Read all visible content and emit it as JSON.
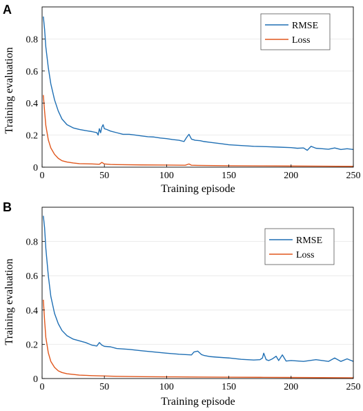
{
  "chart_data": [
    {
      "panel_label": "A",
      "type": "line",
      "xlabel": "Training episode",
      "ylabel": "Training evaluation",
      "xlim": [
        0,
        250
      ],
      "ylim": [
        0,
        1
      ],
      "xticks": [
        0,
        50,
        100,
        150,
        200,
        250
      ],
      "yticks": [
        0,
        0.2,
        0.4,
        0.6,
        0.8
      ],
      "grid": "horizontal",
      "legend_position": "top-right",
      "colors": {
        "RMSE": "#1f6fb4",
        "Loss": "#e0561c"
      },
      "series": [
        {
          "name": "RMSE",
          "x": [
            1,
            2,
            3,
            5,
            7,
            10,
            13,
            16,
            20,
            25,
            30,
            35,
            40,
            44,
            45,
            46,
            47,
            48,
            49,
            50,
            52,
            55,
            60,
            65,
            70,
            75,
            80,
            85,
            90,
            95,
            100,
            105,
            110,
            114,
            116,
            118,
            120,
            123,
            127,
            130,
            135,
            140,
            145,
            150,
            160,
            170,
            180,
            190,
            200,
            205,
            210,
            213,
            216,
            220,
            225,
            230,
            235,
            240,
            245,
            250
          ],
          "y": [
            0.94,
            0.86,
            0.75,
            0.62,
            0.52,
            0.42,
            0.35,
            0.3,
            0.265,
            0.245,
            0.235,
            0.228,
            0.222,
            0.215,
            0.2,
            0.24,
            0.215,
            0.25,
            0.265,
            0.24,
            0.235,
            0.225,
            0.215,
            0.205,
            0.205,
            0.2,
            0.195,
            0.19,
            0.188,
            0.182,
            0.178,
            0.172,
            0.168,
            0.16,
            0.185,
            0.205,
            0.175,
            0.168,
            0.165,
            0.16,
            0.155,
            0.15,
            0.145,
            0.14,
            0.135,
            0.13,
            0.128,
            0.125,
            0.122,
            0.118,
            0.12,
            0.105,
            0.13,
            0.118,
            0.115,
            0.112,
            0.12,
            0.11,
            0.115,
            0.11
          ]
        },
        {
          "name": "Loss",
          "x": [
            1,
            2,
            3,
            5,
            7,
            10,
            13,
            16,
            20,
            25,
            30,
            40,
            46,
            48,
            50,
            55,
            60,
            80,
            100,
            115,
            118,
            120,
            125,
            150,
            175,
            200,
            225,
            250
          ],
          "y": [
            0.45,
            0.35,
            0.26,
            0.17,
            0.12,
            0.08,
            0.055,
            0.04,
            0.032,
            0.026,
            0.022,
            0.02,
            0.018,
            0.03,
            0.02,
            0.017,
            0.016,
            0.014,
            0.013,
            0.012,
            0.02,
            0.012,
            0.011,
            0.009,
            0.008,
            0.007,
            0.006,
            0.005
          ]
        }
      ]
    },
    {
      "panel_label": "B",
      "type": "line",
      "xlabel": "Training episode",
      "ylabel": "Training evaluation",
      "xlim": [
        0,
        250
      ],
      "ylim": [
        0,
        1
      ],
      "xticks": [
        0,
        50,
        100,
        150,
        200,
        250
      ],
      "yticks": [
        0,
        0.2,
        0.4,
        0.6,
        0.8
      ],
      "grid": "horizontal",
      "legend_position": "top-right",
      "colors": {
        "RMSE": "#1f6fb4",
        "Loss": "#e0561c"
      },
      "series": [
        {
          "name": "RMSE",
          "x": [
            1,
            2,
            3,
            5,
            7,
            10,
            13,
            16,
            20,
            25,
            30,
            35,
            40,
            44,
            46,
            48,
            50,
            55,
            60,
            70,
            80,
            90,
            100,
            110,
            120,
            122,
            125,
            128,
            130,
            135,
            140,
            150,
            160,
            170,
            175,
            177,
            178,
            180,
            182,
            185,
            188,
            190,
            193,
            196,
            200,
            210,
            220,
            230,
            235,
            240,
            245,
            250
          ],
          "y": [
            0.95,
            0.88,
            0.76,
            0.6,
            0.48,
            0.38,
            0.32,
            0.28,
            0.25,
            0.23,
            0.22,
            0.21,
            0.195,
            0.19,
            0.21,
            0.195,
            0.188,
            0.185,
            0.175,
            0.17,
            0.162,
            0.155,
            0.148,
            0.142,
            0.138,
            0.155,
            0.16,
            0.14,
            0.135,
            0.128,
            0.125,
            0.12,
            0.112,
            0.108,
            0.11,
            0.12,
            0.148,
            0.11,
            0.105,
            0.115,
            0.13,
            0.105,
            0.138,
            0.102,
            0.105,
            0.1,
            0.11,
            0.1,
            0.12,
            0.1,
            0.115,
            0.1
          ]
        },
        {
          "name": "Loss",
          "x": [
            1,
            2,
            3,
            5,
            7,
            10,
            13,
            16,
            20,
            25,
            30,
            40,
            50,
            60,
            80,
            100,
            125,
            150,
            175,
            200,
            225,
            250
          ],
          "y": [
            0.46,
            0.34,
            0.24,
            0.15,
            0.1,
            0.065,
            0.045,
            0.035,
            0.028,
            0.024,
            0.02,
            0.017,
            0.015,
            0.013,
            0.011,
            0.01,
            0.009,
            0.008,
            0.007,
            0.006,
            0.005,
            0.004
          ]
        }
      ]
    }
  ]
}
